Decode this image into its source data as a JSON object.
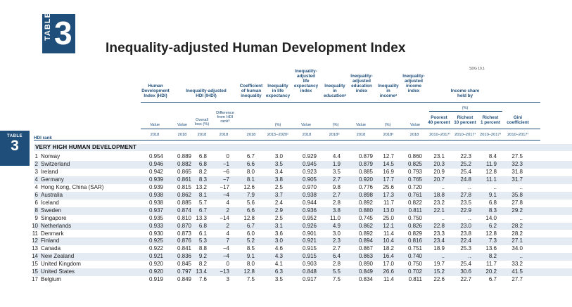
{
  "badge": {
    "word": "TABLE",
    "number": "3"
  },
  "title": "Inequality-adjusted Human Development Index",
  "sdg_label": "SDG 10.1",
  "side_tab": {
    "word": "TABLE",
    "number": "3"
  },
  "headers": {
    "hdi": [
      "Human",
      "Development",
      "Index (HDI)"
    ],
    "ihdi": [
      "Inequality-adjusted",
      "HDI (IHDI)"
    ],
    "coeff": [
      "Coefficient",
      "of human",
      "inequality"
    ],
    "ineq_life": [
      "Inequality",
      "in life",
      "expectancy"
    ],
    "ineq_life_idx": [
      "Inequality-",
      "adjusted",
      "life",
      "expectancy",
      "index"
    ],
    "ineq_edu": [
      "Inequality",
      "in",
      "educationᵃ"
    ],
    "ineq_edu_idx": [
      "Inequality-",
      "adjusted",
      "education",
      "index"
    ],
    "ineq_income": [
      "Inequality",
      "in",
      "incomeᵃ"
    ],
    "ineq_income_idx": [
      "Inequality-",
      "adjusted",
      "income",
      "index"
    ],
    "income_share": [
      "Income share",
      "held by"
    ],
    "pct": "(%)",
    "poorest": [
      "Poorest",
      "40 percent"
    ],
    "richest10": [
      "Richest",
      "10 percent"
    ],
    "richest1": [
      "Richest",
      "1 percent"
    ],
    "gini": [
      "Gini",
      "coefficient"
    ],
    "value": "Value",
    "overall_loss": [
      "Overall",
      "loss (%)"
    ],
    "diff_rank": [
      "Difference",
      "from HDI",
      "rankᵇ"
    ],
    "years": [
      "2018",
      "2018",
      "2018",
      "2018",
      "2018",
      "2015–2020ᶜ",
      "2018",
      "2018ᵈ",
      "2018",
      "2018ᵉ",
      "2018",
      "2010–2017ᶠ",
      "2010–2017ᶠ",
      "2010–2017ᶠ",
      "2010–2017ᶠ"
    ]
  },
  "hdi_rank_label": "HDI rank",
  "group_label": "VERY HIGH HUMAN DEVELOPMENT",
  "rows": [
    {
      "rank": "1",
      "country": "Norway",
      "hdi": "0.954",
      "ihdi": "0.889",
      "loss": "6.8",
      "diff": "0",
      "coeff": "6.7",
      "life": "3.0",
      "life_idx": "0.929",
      "edu": "4.4",
      "edu_idx": "0.879",
      "inc": "12.7",
      "inc_idx": "0.860",
      "poorest": "23.1",
      "r10": "22.3",
      "r1": "8.4",
      "gini": "27.5"
    },
    {
      "rank": "2",
      "country": "Switzerland",
      "hdi": "0.946",
      "ihdi": "0.882",
      "loss": "6.8",
      "diff": "−1",
      "coeff": "6.6",
      "life": "3.5",
      "life_idx": "0.945",
      "edu": "1.9",
      "edu_idx": "0.879",
      "inc": "14.5",
      "inc_idx": "0.825",
      "poorest": "20.3",
      "r10": "25.2",
      "r1": "11.9",
      "gini": "32.3"
    },
    {
      "rank": "3",
      "country": "Ireland",
      "hdi": "0.942",
      "ihdi": "0.865",
      "loss": "8.2",
      "diff": "−6",
      "coeff": "8.0",
      "life": "3.4",
      "life_idx": "0.923",
      "edu": "3.5",
      "edu_idx": "0.885",
      "inc": "16.9",
      "inc_idx": "0.793",
      "poorest": "20.9",
      "r10": "25.4",
      "r1": "12.8",
      "gini": "31.8"
    },
    {
      "rank": "4",
      "country": "Germany",
      "hdi": "0.939",
      "ihdi": "0.861",
      "loss": "8.3",
      "diff": "−7",
      "coeff": "8.1",
      "life": "3.8",
      "life_idx": "0.905",
      "edu": "2.7",
      "edu_idx": "0.920",
      "inc": "17.7",
      "inc_idx": "0.765",
      "poorest": "20.7",
      "r10": "24.8",
      "r1": "11.1",
      "gini": "31.7"
    },
    {
      "rank": "4",
      "country": "Hong Kong, China (SAR)",
      "hdi": "0.939",
      "ihdi": "0.815",
      "loss": "13.2",
      "diff": "−17",
      "coeff": "12.6",
      "life": "2.5",
      "life_idx": "0.970",
      "edu": "9.8",
      "edu_idx": "0.776",
      "inc": "25.6",
      "inc_idx": "0.720",
      "poorest": "..",
      "r10": "..",
      "r1": "..",
      "gini": ".."
    },
    {
      "rank": "6",
      "country": "Australia",
      "hdi": "0.938",
      "ihdi": "0.862",
      "loss": "8.1",
      "diff": "−4",
      "coeff": "7.9",
      "life": "3.7",
      "life_idx": "0.938",
      "edu": "2.7",
      "edu_idx": "0.898",
      "inc": "17.3",
      "inc_idx": "0.761",
      "poorest": "18.8",
      "r10": "27.8",
      "r1": "9.1",
      "gini": "35.8"
    },
    {
      "rank": "6",
      "country": "Iceland",
      "hdi": "0.938",
      "ihdi": "0.885",
      "loss": "5.7",
      "diff": "4",
      "coeff": "5.6",
      "life": "2.4",
      "life_idx": "0.944",
      "edu": "2.8",
      "edu_idx": "0.892",
      "inc": "11.7",
      "inc_idx": "0.822",
      "poorest": "23.2",
      "r10": "23.5",
      "r1": "6.8",
      "gini": "27.8"
    },
    {
      "rank": "8",
      "country": "Sweden",
      "hdi": "0.937",
      "ihdi": "0.874",
      "loss": "6.7",
      "diff": "2",
      "coeff": "6.6",
      "life": "2.9",
      "life_idx": "0.936",
      "edu": "3.8",
      "edu_idx": "0.880",
      "inc": "13.0",
      "inc_idx": "0.811",
      "poorest": "22.1",
      "r10": "22.9",
      "r1": "8.3",
      "gini": "29.2"
    },
    {
      "rank": "9",
      "country": "Singapore",
      "hdi": "0.935",
      "ihdi": "0.810",
      "loss": "13.3",
      "diff": "−14",
      "coeff": "12.8",
      "life": "2.5",
      "life_idx": "0.952",
      "edu": "11.0",
      "edu_idx": "0.745",
      "inc": "25.0",
      "inc_idx": "0.750",
      "poorest": "..",
      "r10": "..",
      "r1": "14.0",
      "gini": ".."
    },
    {
      "rank": "10",
      "country": "Netherlands",
      "hdi": "0.933",
      "ihdi": "0.870",
      "loss": "6.8",
      "diff": "2",
      "coeff": "6.7",
      "life": "3.1",
      "life_idx": "0.926",
      "edu": "4.9",
      "edu_idx": "0.862",
      "inc": "12.1",
      "inc_idx": "0.826",
      "poorest": "22.8",
      "r10": "23.0",
      "r1": "6.2",
      "gini": "28.2"
    },
    {
      "rank": "11",
      "country": "Denmark",
      "hdi": "0.930",
      "ihdi": "0.873",
      "loss": "6.1",
      "diff": "4",
      "coeff": "6.0",
      "life": "3.6",
      "life_idx": "0.901",
      "edu": "3.0",
      "edu_idx": "0.892",
      "inc": "11.4",
      "inc_idx": "0.829",
      "poorest": "23.3",
      "r10": "23.8",
      "r1": "12.8",
      "gini": "28.2"
    },
    {
      "rank": "12",
      "country": "Finland",
      "hdi": "0.925",
      "ihdi": "0.876",
      "loss": "5.3",
      "diff": "7",
      "coeff": "5.2",
      "life": "3.0",
      "life_idx": "0.921",
      "edu": "2.3",
      "edu_idx": "0.894",
      "inc": "10.4",
      "inc_idx": "0.816",
      "poorest": "23.4",
      "r10": "22.4",
      "r1": "7.3",
      "gini": "27.1"
    },
    {
      "rank": "13",
      "country": "Canada",
      "hdi": "0.922",
      "ihdi": "0.841",
      "loss": "8.8",
      "diff": "−4",
      "coeff": "8.5",
      "life": "4.6",
      "life_idx": "0.915",
      "edu": "2.7",
      "edu_idx": "0.867",
      "inc": "18.2",
      "inc_idx": "0.751",
      "poorest": "18.9",
      "r10": "25.3",
      "r1": "13.6",
      "gini": "34.0"
    },
    {
      "rank": "14",
      "country": "New Zealand",
      "hdi": "0.921",
      "ihdi": "0.836",
      "loss": "9.2",
      "diff": "−4",
      "coeff": "9.1",
      "life": "4.3",
      "life_idx": "0.915",
      "edu": "6.4",
      "edu_idx": "0.863",
      "inc": "16.4",
      "inc_idx": "0.740",
      "poorest": "..",
      "r10": "..",
      "r1": "8.2",
      "gini": ".."
    },
    {
      "rank": "15",
      "country": "United Kingdom",
      "hdi": "0.920",
      "ihdi": "0.845",
      "loss": "8.2",
      "diff": "0",
      "coeff": "8.0",
      "life": "4.1",
      "life_idx": "0.903",
      "edu": "2.8",
      "edu_idx": "0.890",
      "inc": "17.0",
      "inc_idx": "0.750",
      "poorest": "19.7",
      "r10": "25.4",
      "r1": "11.7",
      "gini": "33.2"
    },
    {
      "rank": "15",
      "country": "United States",
      "hdi": "0.920",
      "ihdi": "0.797",
      "loss": "13.4",
      "diff": "−13",
      "coeff": "12.8",
      "life": "6.3",
      "life_idx": "0.848",
      "edu": "5.5",
      "edu_idx": "0.849",
      "inc": "26.6",
      "inc_idx": "0.702",
      "poorest": "15.2",
      "r10": "30.6",
      "r1": "20.2",
      "gini": "41.5"
    },
    {
      "rank": "17",
      "country": "Belgium",
      "hdi": "0.919",
      "ihdi": "0.849",
      "loss": "7.6",
      "diff": "3",
      "coeff": "7.5",
      "life": "3.5",
      "life_idx": "0.917",
      "edu": "7.5",
      "edu_idx": "0.834",
      "inc": "11.4",
      "inc_idx": "0.811",
      "poorest": "22.6",
      "r10": "22.7",
      "r1": "6.7",
      "gini": "27.7"
    }
  ]
}
